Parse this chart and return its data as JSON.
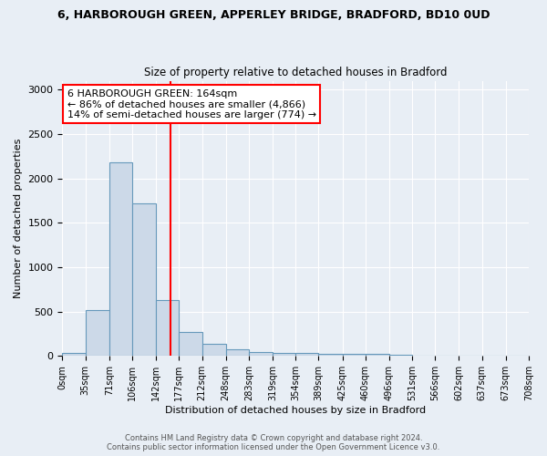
{
  "title1": "6, HARBOROUGH GREEN, APPERLEY BRIDGE, BRADFORD, BD10 0UD",
  "title2": "Size of property relative to detached houses in Bradford",
  "xlabel": "Distribution of detached houses by size in Bradford",
  "ylabel": "Number of detached properties",
  "bin_edges": [
    0,
    35,
    71,
    106,
    142,
    177,
    212,
    248,
    283,
    319,
    354,
    389,
    425,
    460,
    496,
    531,
    566,
    602,
    637,
    673,
    708
  ],
  "bar_heights": [
    30,
    520,
    2180,
    1720,
    635,
    270,
    135,
    75,
    45,
    35,
    30,
    25,
    20,
    20,
    15,
    5,
    5,
    0,
    0,
    0
  ],
  "bar_color": "#ccd9e8",
  "bar_edge_color": "#6699bb",
  "red_line_x": 164,
  "annotation_line1": "6 HARBOROUGH GREEN: 164sqm",
  "annotation_line2": "← 86% of detached houses are smaller (4,866)",
  "annotation_line3": "14% of semi-detached houses are larger (774) →",
  "ylim": [
    0,
    3100
  ],
  "yticks": [
    0,
    500,
    1000,
    1500,
    2000,
    2500,
    3000
  ],
  "footer_line1": "Contains HM Land Registry data © Crown copyright and database right 2024.",
  "footer_line2": "Contains public sector information licensed under the Open Government Licence v3.0.",
  "bg_color": "#e8eef5",
  "plot_bg_color": "#e8eef5",
  "title1_fontsize": 9,
  "title2_fontsize": 8.5,
  "xlabel_fontsize": 8,
  "ylabel_fontsize": 8,
  "tick_fontsize": 7,
  "annotation_fontsize": 8,
  "footer_fontsize": 6
}
